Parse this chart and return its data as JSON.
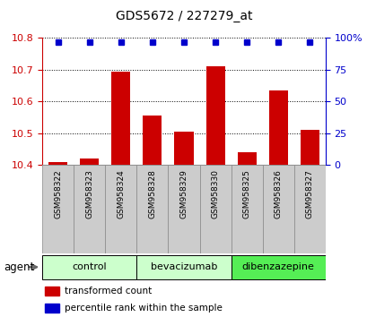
{
  "title": "GDS5672 / 227279_at",
  "samples": [
    "GSM958322",
    "GSM958323",
    "GSM958324",
    "GSM958328",
    "GSM958329",
    "GSM958330",
    "GSM958325",
    "GSM958326",
    "GSM958327"
  ],
  "transformed_counts": [
    10.41,
    10.42,
    10.695,
    10.555,
    10.505,
    10.71,
    10.44,
    10.635,
    10.51
  ],
  "percentile_ranks": [
    97,
    97,
    97,
    97,
    97,
    97,
    97,
    97,
    97
  ],
  "groups": [
    {
      "label": "control",
      "indices": [
        0,
        1,
        2
      ],
      "color": "#ccffcc"
    },
    {
      "label": "bevacizumab",
      "indices": [
        3,
        4,
        5
      ],
      "color": "#ccffcc"
    },
    {
      "label": "dibenzazepine",
      "indices": [
        6,
        7,
        8
      ],
      "color": "#55ee55"
    }
  ],
  "ylim_left": [
    10.4,
    10.8
  ],
  "ylim_right": [
    0,
    100
  ],
  "yticks_left": [
    10.4,
    10.5,
    10.6,
    10.7,
    10.8
  ],
  "yticks_right": [
    0,
    25,
    50,
    75,
    100
  ],
  "bar_color": "#cc0000",
  "dot_color": "#0000cc",
  "bar_width": 0.6,
  "bar_baseline": 10.4,
  "percentile_yval": 97,
  "background_color": "#ffffff",
  "tick_label_color_left": "#cc0000",
  "tick_label_color_right": "#0000cc",
  "legend_red_label": "transformed count",
  "legend_blue_label": "percentile rank within the sample",
  "agent_label": "agent",
  "grid_linestyle": "dotted",
  "sample_box_color": "#cccccc",
  "sample_box_border": "#888888"
}
